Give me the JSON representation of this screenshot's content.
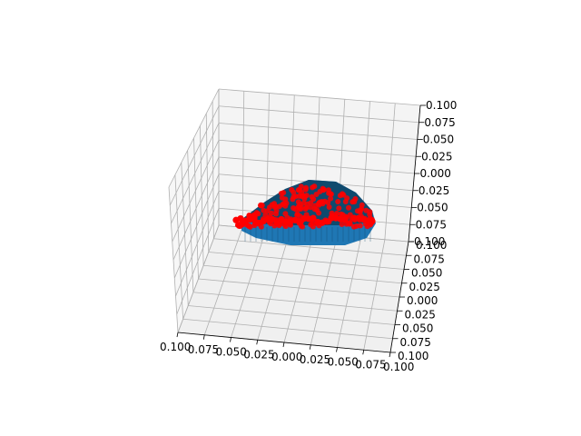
{
  "chart_data": {
    "type": "scatter3d",
    "title": "",
    "xlabel": "",
    "ylabel": "",
    "zlabel": "",
    "grid": true,
    "colors": {
      "voxel_top": "#0f4a6e",
      "voxel_side": "#1f77b4",
      "points": "#ff0000",
      "grid": "#b0b0b0",
      "pane": "#f2f2f2"
    },
    "axes": {
      "x": {
        "range": [
          -0.1,
          0.1
        ],
        "ticks": [
          "0.100",
          "0.075",
          "0.050",
          "0.025",
          "0.000",
          "0.025",
          "0.050",
          "0.075",
          "0.100"
        ]
      },
      "y": {
        "range": [
          -0.1,
          0.1
        ],
        "ticks": [
          "0.100",
          "0.075",
          "0.050",
          "0.025",
          "0.000",
          "0.025",
          "0.050",
          "0.075",
          "0.100"
        ]
      },
      "z": {
        "range": [
          -0.1,
          0.1
        ],
        "ticks": [
          "0.100",
          "0.075",
          "0.050",
          "0.025",
          "0.000",
          "0.025",
          "0.050",
          "0.075",
          "0.100"
        ]
      }
    },
    "series": [
      {
        "name": "voxels",
        "kind": "voxel-mesh",
        "description_color": "#1f77b4"
      },
      {
        "name": "points",
        "kind": "scatter",
        "marker_color": "#ff0000"
      }
    ]
  }
}
